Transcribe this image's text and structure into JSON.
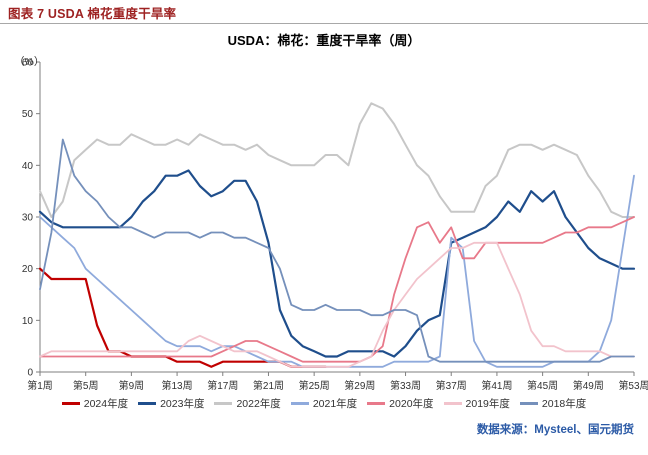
{
  "figure": {
    "title": "图表 7 USDA 棉花重度干旱率"
  },
  "source": {
    "text": "数据来源：Mysteel、国元期货"
  },
  "colors": {
    "figure_title": "#9e2222",
    "source_text": "#2b5aa6",
    "axis": "#7f7f7f",
    "tick_label": "#333333"
  },
  "chart_data": {
    "type": "line",
    "title": "USDA：棉花：重度干旱率（周）",
    "y_unit_label": "（%）",
    "ylim": [
      0,
      60
    ],
    "y_ticks": [
      0,
      10,
      20,
      30,
      40,
      50,
      60
    ],
    "weeks_total": 53,
    "x_tick_weeks": [
      1,
      5,
      9,
      13,
      17,
      21,
      25,
      29,
      33,
      37,
      41,
      45,
      49,
      53
    ],
    "x_tick_labels": [
      "第1周",
      "第5周",
      "第9周",
      "第13周",
      "第17周",
      "第21周",
      "第25周",
      "第29周",
      "第33周",
      "第37周",
      "第41周",
      "第45周",
      "第49周",
      "第53周"
    ],
    "grid": false,
    "legend_position": "bottom",
    "series": [
      {
        "id": "2024",
        "name": "2024年度",
        "color": "#c00000",
        "width": 2.2,
        "values": [
          20,
          18,
          18,
          18,
          18,
          9,
          4,
          4,
          3,
          3,
          3,
          3,
          2,
          2,
          2,
          1,
          2,
          2,
          2,
          2,
          2,
          2,
          1,
          1,
          1,
          1
        ]
      },
      {
        "id": "2023",
        "name": "2023年度",
        "color": "#1f4e8c",
        "width": 2.2,
        "values": [
          31,
          29,
          28,
          28,
          28,
          28,
          28,
          28,
          30,
          33,
          35,
          38,
          38,
          39,
          36,
          34,
          35,
          37,
          37,
          33,
          25,
          12,
          7,
          5,
          4,
          3,
          3,
          4,
          4,
          4,
          4,
          3,
          5,
          8,
          10,
          11,
          25,
          26,
          27,
          28,
          30,
          33,
          31,
          35,
          33,
          35,
          30,
          27,
          24,
          22,
          21,
          20,
          20
        ]
      },
      {
        "id": "2022",
        "name": "2022年度",
        "color": "#c7c7c7",
        "width": 2,
        "values": [
          35,
          30,
          33,
          41,
          43,
          45,
          44,
          44,
          46,
          45,
          44,
          44,
          45,
          44,
          46,
          45,
          44,
          44,
          43,
          44,
          42,
          41,
          40,
          40,
          40,
          42,
          42,
          40,
          48,
          52,
          51,
          48,
          44,
          40,
          38,
          34,
          31,
          31,
          31,
          36,
          38,
          43,
          44,
          44,
          43,
          44,
          43,
          42,
          38,
          35,
          31,
          30,
          30
        ]
      },
      {
        "id": "2021",
        "name": "2021年度",
        "color": "#8faadc",
        "width": 1.8,
        "values": [
          30,
          28,
          26,
          24,
          20,
          18,
          16,
          14,
          12,
          10,
          8,
          6,
          5,
          5,
          5,
          4,
          5,
          5,
          4,
          3,
          2,
          2,
          2,
          1,
          1,
          1,
          1,
          1,
          1,
          1,
          1,
          2,
          2,
          2,
          2,
          3,
          26,
          24,
          6,
          2,
          1,
          1,
          1,
          1,
          1,
          2,
          2,
          2,
          2,
          4,
          10,
          24,
          38
        ]
      },
      {
        "id": "2020",
        "name": "2020年度",
        "color": "#e8798a",
        "width": 1.8,
        "values": [
          3,
          3,
          3,
          3,
          3,
          3,
          3,
          3,
          3,
          3,
          3,
          3,
          3,
          3,
          3,
          3,
          4,
          5,
          6,
          6,
          5,
          4,
          3,
          2,
          2,
          2,
          2,
          2,
          2,
          3,
          5,
          15,
          22,
          28,
          29,
          25,
          28,
          22,
          22,
          25,
          25,
          25,
          25,
          25,
          25,
          26,
          27,
          27,
          28,
          28,
          28,
          29,
          30
        ]
      },
      {
        "id": "2019",
        "name": "2019年度",
        "color": "#f2c3cc",
        "width": 1.8,
        "values": [
          3,
          4,
          4,
          4,
          4,
          4,
          4,
          4,
          4,
          4,
          4,
          4,
          4,
          6,
          7,
          6,
          5,
          4,
          4,
          4,
          3,
          2,
          1,
          1,
          1,
          1,
          1,
          1,
          2,
          3,
          8,
          12,
          15,
          18,
          20,
          22,
          24,
          24,
          25,
          25,
          25,
          20,
          15,
          8,
          5,
          5,
          4,
          4,
          4,
          4,
          3,
          3,
          3
        ]
      },
      {
        "id": "2018",
        "name": "2018年度",
        "color": "#7590bb",
        "width": 1.8,
        "values": [
          16,
          27,
          45,
          38,
          35,
          33,
          30,
          28,
          28,
          27,
          26,
          27,
          27,
          27,
          26,
          27,
          27,
          26,
          26,
          25,
          24,
          20,
          13,
          12,
          12,
          13,
          12,
          12,
          12,
          11,
          11,
          12,
          12,
          11,
          3,
          2,
          2,
          2,
          2,
          2,
          2,
          2,
          2,
          2,
          2,
          2,
          2,
          2,
          2,
          2,
          3,
          3,
          3
        ]
      }
    ]
  }
}
